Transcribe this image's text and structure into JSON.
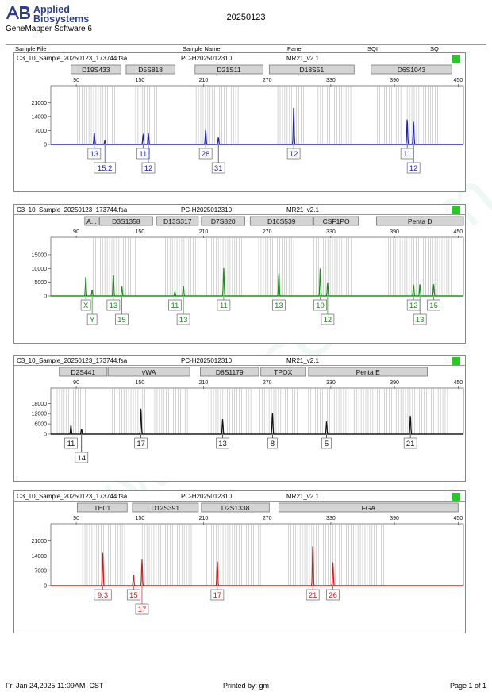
{
  "header": {
    "brand_line1": "Applied",
    "brand_line2": "Biosystems",
    "software": "GeneMapper Software 6",
    "title": "20250123",
    "columns": {
      "sample_file": "Sample File",
      "sample_name": "Sample Name",
      "panel": "Panel",
      "sqi": "SQI",
      "sq": "SQ"
    }
  },
  "footer": {
    "datetime": "Fri Jan 24,2025 11:09AM, CST",
    "printed_by": "Printed by: gm",
    "page": "Page 1 of 1"
  },
  "watermark": "www.procell.com.cn",
  "colors": {
    "blue": "#1e22a8",
    "green": "#1a8c1a",
    "black": "#111111",
    "red": "#c81e1e",
    "status": "#22cc22"
  },
  "chart_data": [
    {
      "type": "line",
      "dye": "blue",
      "sample_file": "C3_10_Sample_20250123_173744.fsa",
      "sample_name": "PC-H2025012310",
      "panel": "MR21_v2.1",
      "x_ticks": [
        90,
        150,
        210,
        270,
        330,
        390,
        450
      ],
      "y_ticks": [
        0,
        7000,
        14000,
        21000
      ],
      "ylim": [
        0,
        23500
      ],
      "xlim": [
        66,
        455
      ],
      "markers": [
        {
          "label": "D19S433",
          "from": 85,
          "to": 132
        },
        {
          "label": "D5S818",
          "from": 137,
          "to": 183
        },
        {
          "label": "D21S11",
          "from": 202,
          "to": 266
        },
        {
          "label": "D18S51",
          "from": 272,
          "to": 352
        },
        {
          "label": "D6S1043",
          "from": 368,
          "to": 444
        }
      ],
      "bins": [
        {
          "from": 91,
          "to": 130
        },
        {
          "from": 146,
          "to": 167
        },
        {
          "from": 203,
          "to": 243
        },
        {
          "from": 280,
          "to": 305
        },
        {
          "from": 318,
          "to": 349
        },
        {
          "from": 374,
          "to": 398
        },
        {
          "from": 402,
          "to": 434
        }
      ],
      "peaks": [
        {
          "x": 107,
          "height": 6200,
          "label": "13"
        },
        {
          "x": 117,
          "height": 2000,
          "label": "15.2"
        },
        {
          "x": 153,
          "height": 5200,
          "label": "11"
        },
        {
          "x": 158,
          "height": 5600,
          "label": "12"
        },
        {
          "x": 212,
          "height": 7600,
          "label": "28"
        },
        {
          "x": 224,
          "height": 3600,
          "label": "31"
        },
        {
          "x": 295,
          "height": 18900,
          "label": "12"
        },
        {
          "x": 402,
          "height": 13000,
          "label": "11"
        },
        {
          "x": 408,
          "height": 12000,
          "label": "12"
        }
      ]
    },
    {
      "type": "line",
      "dye": "green",
      "sample_file": "C3_10_Sample_20250123_173744.fsa",
      "sample_name": "PC-H2025012310",
      "panel": "MR21_v2.1",
      "x_ticks": [
        90,
        150,
        210,
        270,
        330,
        390,
        450
      ],
      "y_ticks": [
        0,
        5000,
        10000,
        15000
      ],
      "ylim": [
        0,
        17000
      ],
      "xlim": [
        66,
        455
      ],
      "markers": [
        {
          "label": "A...",
          "from": 98,
          "to": 111
        },
        {
          "label": "D3S1358",
          "from": 112,
          "to": 162
        },
        {
          "label": "D13S317",
          "from": 166,
          "to": 205
        },
        {
          "label": "D7S820",
          "from": 208,
          "to": 249
        },
        {
          "label": "D16S539",
          "from": 254,
          "to": 313
        },
        {
          "label": "CSF1PO",
          "from": 314,
          "to": 356
        },
        {
          "label": "Penta D",
          "from": 373,
          "to": 455
        }
      ],
      "bins": [
        {
          "from": 106,
          "to": 146
        },
        {
          "from": 174,
          "to": 205
        },
        {
          "from": 213,
          "to": 250
        },
        {
          "from": 262,
          "to": 296
        },
        {
          "from": 314,
          "to": 350
        },
        {
          "from": 382,
          "to": 445
        }
      ],
      "peaks": [
        {
          "x": 99,
          "height": 7000,
          "label": "X"
        },
        {
          "x": 105,
          "height": 2300,
          "label": "Y"
        },
        {
          "x": 125,
          "height": 7800,
          "label": "13"
        },
        {
          "x": 133,
          "height": 3600,
          "label": "15"
        },
        {
          "x": 183,
          "height": 1600,
          "label": "11"
        },
        {
          "x": 191,
          "height": 3500,
          "label": "13"
        },
        {
          "x": 229,
          "height": 10300,
          "label": "11"
        },
        {
          "x": 281,
          "height": 8400,
          "label": "13"
        },
        {
          "x": 320,
          "height": 10000,
          "label": "10"
        },
        {
          "x": 327,
          "height": 5000,
          "label": "12"
        },
        {
          "x": 408,
          "height": 4300,
          "label": "12"
        },
        {
          "x": 414,
          "height": 4500,
          "label": "13"
        },
        {
          "x": 427,
          "height": 4300,
          "label": "15"
        }
      ]
    },
    {
      "type": "line",
      "dye": "black",
      "sample_file": "C3_10_Sample_20250123_173744.fsa",
      "sample_name": "PC-H2025012310",
      "panel": "MR21_v2.1",
      "x_ticks": [
        90,
        150,
        210,
        270,
        330,
        390,
        450
      ],
      "y_ticks": [
        0,
        6000,
        12000,
        18000
      ],
      "ylim": [
        0,
        20000
      ],
      "xlim": [
        66,
        455
      ],
      "markers": [
        {
          "label": "D2S441",
          "from": 74,
          "to": 119
        },
        {
          "label": "vWA",
          "from": 120,
          "to": 197
        },
        {
          "label": "D8S1179",
          "from": 207,
          "to": 262
        },
        {
          "label": "TPOX",
          "from": 264,
          "to": 306
        },
        {
          "label": "Penta E",
          "from": 309,
          "to": 421
        }
      ],
      "bins": [
        {
          "from": 72,
          "to": 100
        },
        {
          "from": 124,
          "to": 156
        },
        {
          "from": 164,
          "to": 196
        },
        {
          "from": 215,
          "to": 255
        },
        {
          "from": 263,
          "to": 300
        },
        {
          "from": 309,
          "to": 348
        },
        {
          "from": 352,
          "to": 440
        }
      ],
      "peaks": [
        {
          "x": 85,
          "height": 5600,
          "label": "11"
        },
        {
          "x": 95,
          "height": 3000,
          "label": "14"
        },
        {
          "x": 151,
          "height": 15400,
          "label": "17"
        },
        {
          "x": 228,
          "height": 8800,
          "label": "13"
        },
        {
          "x": 275,
          "height": 12800,
          "label": "8"
        },
        {
          "x": 326,
          "height": 7400,
          "label": "5"
        },
        {
          "x": 405,
          "height": 11200,
          "label": "21"
        }
      ]
    },
    {
      "type": "line",
      "dye": "red",
      "sample_file": "C3_10_Sample_20250123_173744.fsa",
      "sample_name": "PC-H2025012310",
      "panel": "MR21_v2.1",
      "x_ticks": [
        90,
        150,
        210,
        270,
        330,
        390,
        450
      ],
      "y_ticks": [
        0,
        7000,
        14000,
        21000
      ],
      "ylim": [
        0,
        23500
      ],
      "xlim": [
        66,
        455
      ],
      "markers": [
        {
          "label": "TH01",
          "from": 91,
          "to": 138
        },
        {
          "label": "D12S391",
          "from": 143,
          "to": 205
        },
        {
          "label": "D2S1338",
          "from": 208,
          "to": 272
        },
        {
          "label": "FGA",
          "from": 281,
          "to": 450
        }
      ],
      "bins": [
        {
          "from": 96,
          "to": 136
        },
        {
          "from": 150,
          "to": 200
        },
        {
          "from": 213,
          "to": 265
        },
        {
          "from": 290,
          "to": 336
        },
        {
          "from": 338,
          "to": 380
        }
      ],
      "peaks": [
        {
          "x": 115,
          "height": 15400,
          "label": "9.3"
        },
        {
          "x": 144,
          "height": 5300,
          "label": "15"
        },
        {
          "x": 152,
          "height": 12300,
          "label": "17"
        },
        {
          "x": 223,
          "height": 11700,
          "label": "17"
        },
        {
          "x": 313,
          "height": 19600,
          "label": "21"
        },
        {
          "x": 332,
          "height": 11000,
          "label": "26"
        }
      ]
    }
  ]
}
